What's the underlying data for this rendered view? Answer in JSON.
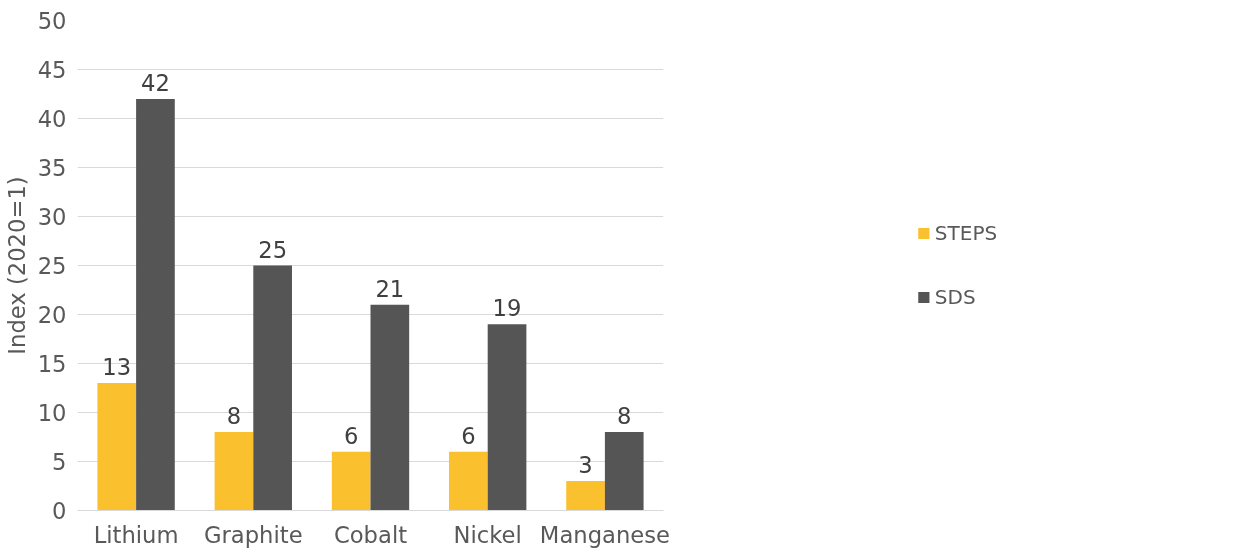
{
  "chart_data": {
    "type": "bar",
    "ylabel": "Index (2020=1)",
    "categories": [
      "Lithium",
      "Graphite",
      "Cobalt",
      "Nickel",
      "Manganese"
    ],
    "series": [
      {
        "name": "STEPS",
        "color": "#fbc02d",
        "values": [
          13,
          8,
          6,
          6,
          3
        ]
      },
      {
        "name": "SDS",
        "color": "#555555",
        "values": [
          42,
          25,
          21,
          19,
          8
        ]
      }
    ],
    "ylim": [
      0,
      50
    ],
    "yticks": [
      0,
      5,
      10,
      15,
      20,
      25,
      30,
      35,
      40,
      45,
      50
    ],
    "grid": "y",
    "legend": "right",
    "data_labels": true
  }
}
